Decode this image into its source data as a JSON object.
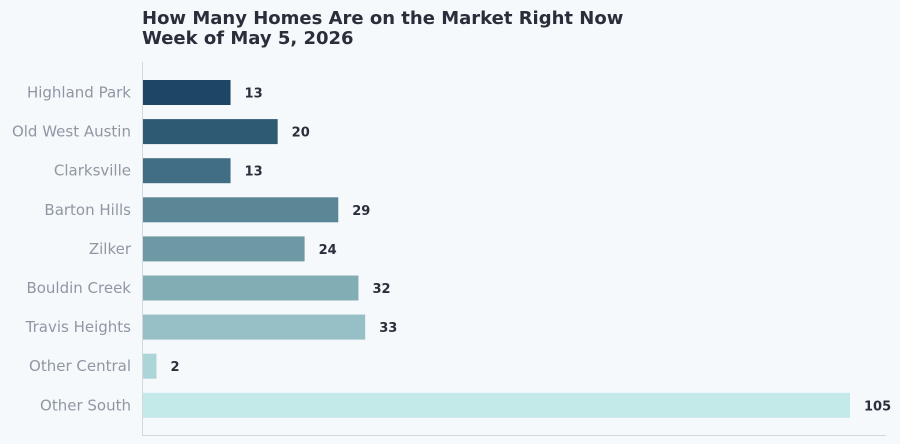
{
  "chart_data": {
    "type": "bar",
    "orientation": "horizontal",
    "title": "How Many Homes Are on the Market Right Now",
    "subtitle": "Week of May 5, 2026",
    "xlabel": "",
    "ylabel": "",
    "categories": [
      "Highland Park",
      "Old West Austin",
      "Clarksville",
      "Barton Hills",
      "Zilker",
      "Bouldin Creek",
      "Travis Heights",
      "Other Central",
      "Other South"
    ],
    "values": [
      13,
      20,
      13,
      29,
      24,
      32,
      33,
      2,
      105
    ],
    "colors": [
      "#1e4566",
      "#2e5a74",
      "#416e84",
      "#5a8695",
      "#6e98a3",
      "#83adb4",
      "#96c0c5",
      "#acd5d8",
      "#c3e9e8"
    ],
    "xlim": [
      0,
      105
    ],
    "grid": false,
    "legend": "none",
    "data_labels": true
  }
}
